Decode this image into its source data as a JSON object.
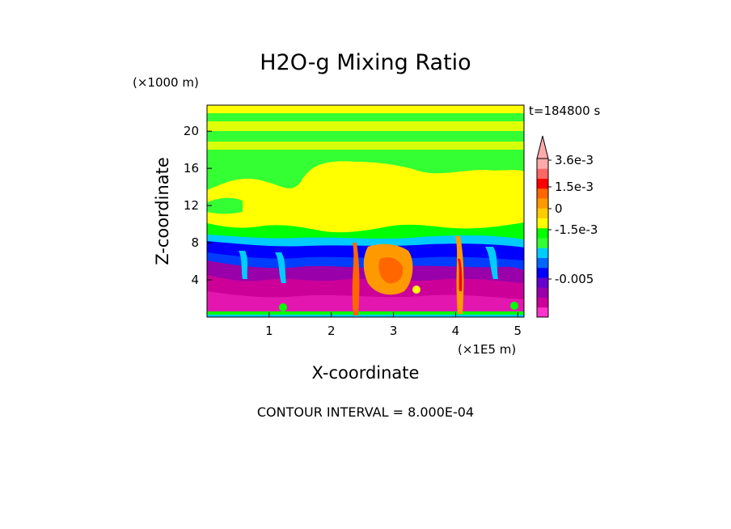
{
  "chart_data": {
    "type": "heatmap",
    "title": "H2O-g Mixing Ratio",
    "xlabel": "X-coordinate",
    "ylabel": "Z-coordinate",
    "x_unit": "(×1E5 m)",
    "y_unit": "(×1000 m)",
    "xlim": [
      0,
      5.1
    ],
    "ylim": [
      0,
      22.8
    ],
    "x_ticks": [
      1,
      2,
      3,
      4,
      5
    ],
    "x_tick_labels": [
      "1",
      "2",
      "3",
      "4",
      "5"
    ],
    "y_ticks": [
      4,
      8,
      12,
      16,
      20
    ],
    "y_tick_labels": [
      "4",
      "8",
      "12",
      "16",
      "20"
    ],
    "time_label": "t=184800 s",
    "contour_interval_label": "CONTOUR INTERVAL = 8.000E-04",
    "colorbar": {
      "colors": [
        "#ff33cc",
        "#cc0099",
        "#9900aa",
        "#6600cc",
        "#0000ff",
        "#0066ff",
        "#00ccff",
        "#33ff33",
        "#00ff00",
        "#ffff00",
        "#ffcc00",
        "#ff9900",
        "#ff6600",
        "#ff0000",
        "#ff6666",
        "#ffaaaa"
      ],
      "tick_labels": [
        "3.6e-3",
        "1.5e-3",
        "0",
        "-1.5e-3",
        "-0.005"
      ],
      "tick_values": [
        0.0036,
        0.0015,
        0,
        -0.0015,
        -0.005
      ]
    },
    "layers": [
      {
        "name": "surface-magenta",
        "z_range": [
          0,
          4.5
        ],
        "color": "#cc0099"
      },
      {
        "name": "purple-band",
        "z_range": [
          4.5,
          6.5
        ],
        "color": "#9900aa"
      },
      {
        "name": "blue-band",
        "z_range": [
          6.5,
          7.5
        ],
        "color": "#0000ff"
      },
      {
        "name": "cyan-band",
        "z_range": [
          7.5,
          8.6
        ],
        "color": "#00ccff"
      },
      {
        "name": "green-band",
        "z_range": [
          8.6,
          10.5
        ],
        "color": "#00ff00"
      },
      {
        "name": "yellow-cloud",
        "z_range": [
          10.5,
          16.5
        ],
        "color": "#ffff00"
      },
      {
        "name": "upper-green",
        "z_range": [
          16.5,
          22.8
        ],
        "color": "#33ff33"
      }
    ],
    "plumes": [
      {
        "x": 2.35,
        "z_top": 8.5,
        "color": "#ff6600"
      },
      {
        "x": 2.85,
        "z_top": 8.5,
        "color": "#ff9900"
      },
      {
        "x": 3.95,
        "z_top": 8.7,
        "color": "#ff9900"
      }
    ]
  }
}
